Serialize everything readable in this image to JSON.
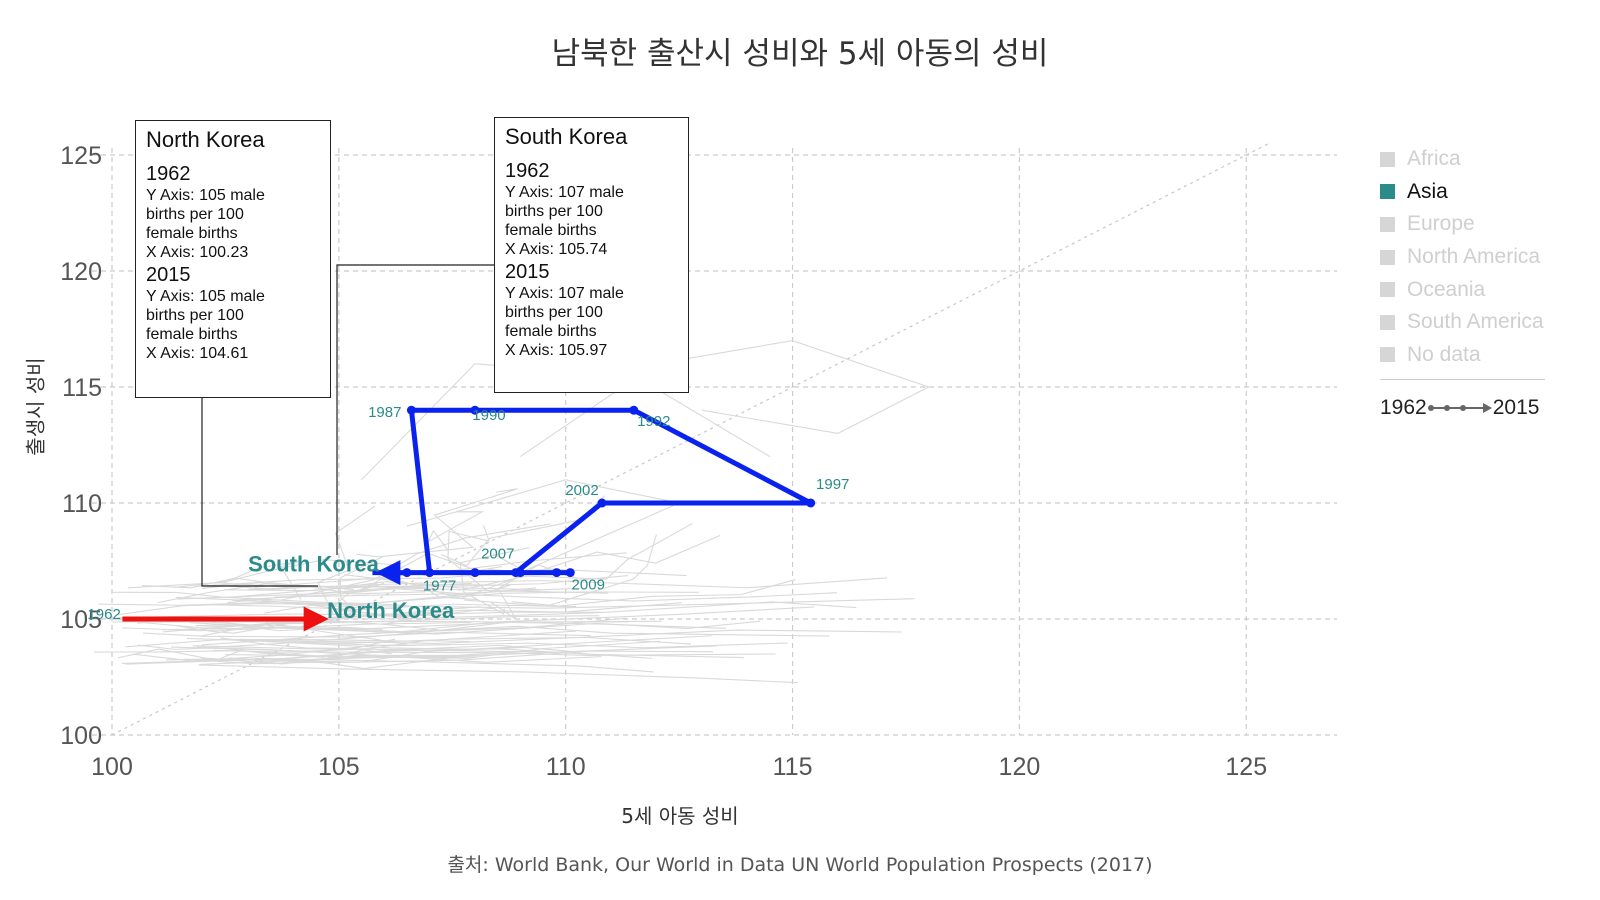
{
  "title": "남북한 출산시 성비와 5세 아동의 성비",
  "source": "출처: World Bank, Our World in Data UN World Population Prospects (2017)",
  "colors": {
    "asia": "#2b8a8a",
    "south_korea": "#0a22ee",
    "north_korea": "#ee1111",
    "grid": "#cccccc",
    "background_lines": "#d9d9d9"
  },
  "legend": {
    "items": [
      {
        "label": "Africa",
        "active": false
      },
      {
        "label": "Asia",
        "active": true
      },
      {
        "label": "Europe",
        "active": false
      },
      {
        "label": "North America",
        "active": false
      },
      {
        "label": "Oceania",
        "active": false
      },
      {
        "label": "South America",
        "active": false
      },
      {
        "label": "No data",
        "active": false
      }
    ],
    "start_year": "1962",
    "end_year": "2015"
  },
  "tooltips": {
    "north_korea": {
      "title": "North Korea",
      "y1": "1962",
      "y1_lines": [
        "Y Axis: 105 male",
        "births per 100",
        "female births",
        "X Axis: 100.23"
      ],
      "y2": "2015",
      "y2_lines": [
        "Y Axis: 105 male",
        "births per 100",
        "female births",
        "X Axis: 104.61"
      ]
    },
    "south_korea": {
      "title": "South Korea",
      "y1": "1962",
      "y1_lines": [
        "Y Axis: 107 male",
        "births per 100",
        "female births",
        "X Axis: 105.74"
      ],
      "y2": "2015",
      "y2_lines": [
        "Y Axis: 107 male",
        "births per 100",
        "female births",
        "X Axis: 105.97"
      ]
    }
  },
  "chart_data": {
    "type": "line",
    "title": "남북한 출산시 성비와 5세 아동의 성비",
    "xlabel": "5세 아동 성비",
    "ylabel": "출생시 성비",
    "xlim": [
      100,
      127
    ],
    "ylim": [
      100,
      125
    ],
    "xticks": [
      "100",
      "105",
      "110",
      "115",
      "120",
      "125"
    ],
    "yticks": [
      "100",
      "105",
      "110",
      "115",
      "120",
      "125"
    ],
    "grid": true,
    "legend_position": "right",
    "reference_line": "y = x",
    "series": [
      {
        "name": "South Korea",
        "points": [
          {
            "x": 105.74,
            "y": 107,
            "label": ""
          },
          {
            "x": 106.5,
            "y": 107,
            "label": ""
          },
          {
            "x": 107.0,
            "y": 107,
            "label": "1977"
          },
          {
            "x": 106.6,
            "y": 114,
            "label": "1987"
          },
          {
            "x": 108.0,
            "y": 114,
            "label": "1990"
          },
          {
            "x": 111.5,
            "y": 114,
            "label": "1992"
          },
          {
            "x": 115.4,
            "y": 110,
            "label": "1997"
          },
          {
            "x": 110.8,
            "y": 110,
            "label": "2002"
          },
          {
            "x": 108.9,
            "y": 107,
            "label": "2007"
          },
          {
            "x": 110.1,
            "y": 107,
            "label": "2009"
          },
          {
            "x": 109.8,
            "y": 107,
            "label": ""
          },
          {
            "x": 109.0,
            "y": 107,
            "label": ""
          },
          {
            "x": 108.0,
            "y": 107,
            "label": ""
          },
          {
            "x": 105.97,
            "y": 107,
            "label": ""
          }
        ],
        "end_label": "South Korea"
      },
      {
        "name": "North Korea",
        "points": [
          {
            "x": 100.23,
            "y": 105,
            "label": "1962"
          },
          {
            "x": 104.61,
            "y": 105,
            "label": ""
          }
        ],
        "end_label": "North Korea"
      }
    ]
  }
}
